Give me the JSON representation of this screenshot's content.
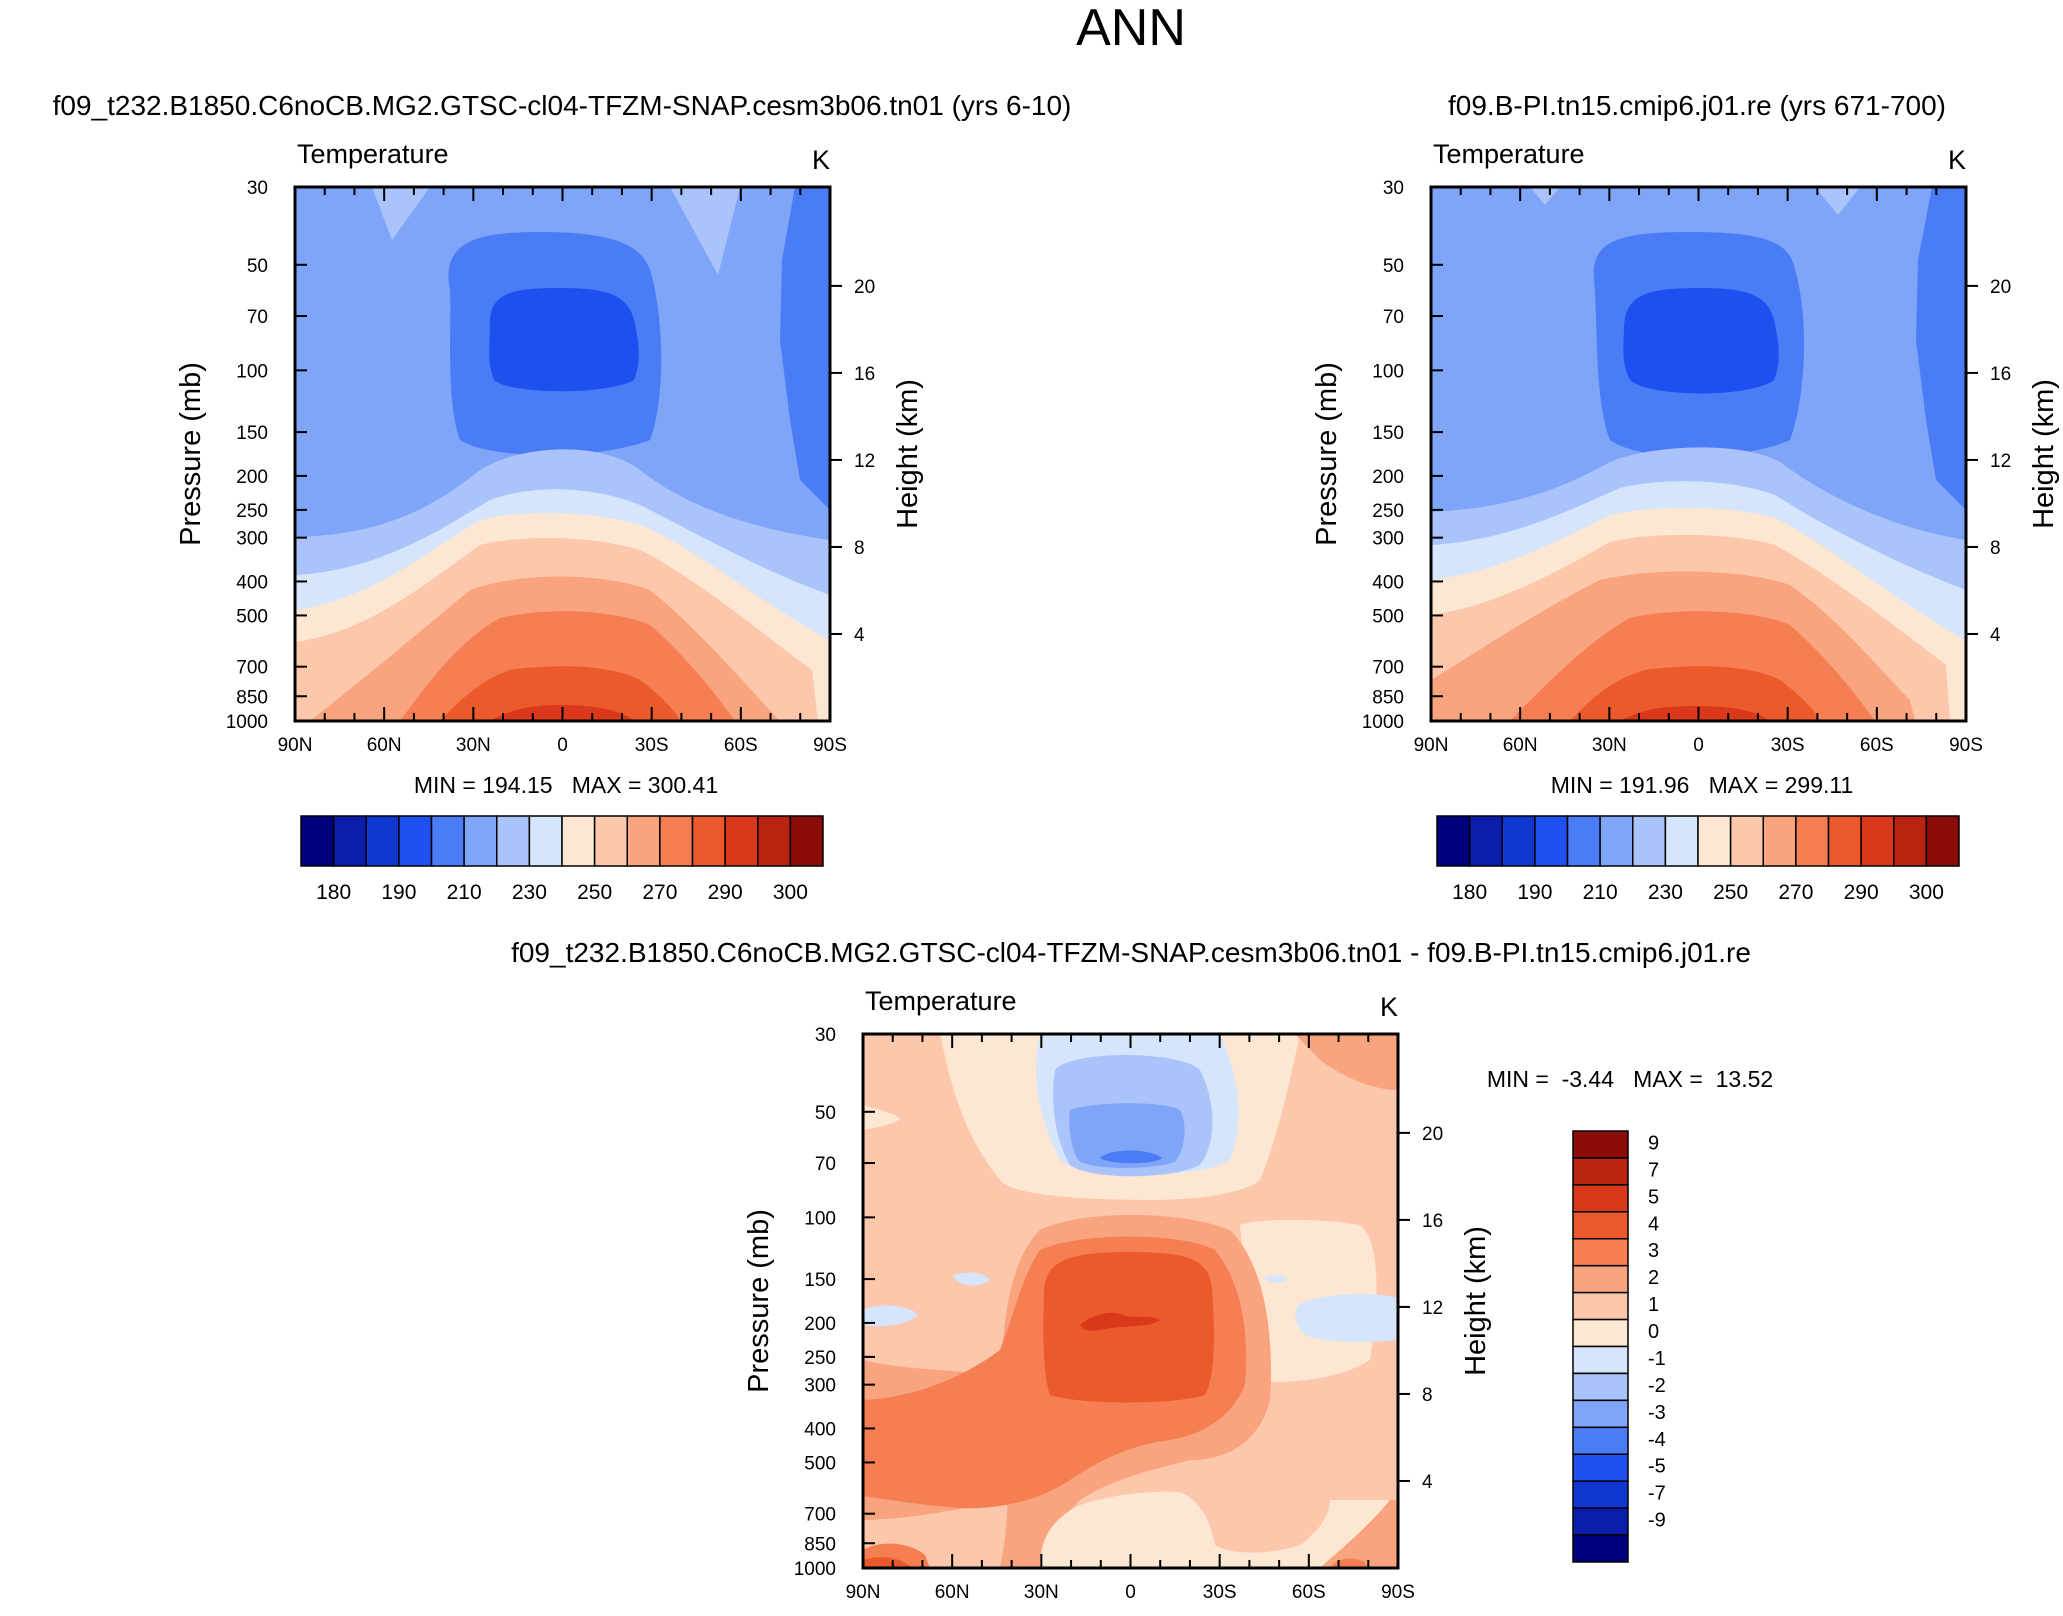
{
  "figure": {
    "title": "ANN"
  },
  "chart_data": [
    {
      "type": "heatmap",
      "case_title": "f09_t232.B1850.C6noCB.MG2.GTSC-cl04-TFZM-SNAP.cesm3b06.tn01 (yrs 6-10)",
      "variable": "Temperature",
      "units": "K",
      "ylabel": "Pressure (mb)",
      "ylabel_right": "Height (km)",
      "x_ticks": [
        "90N",
        "60N",
        "30N",
        "0",
        "30S",
        "60S",
        "90S"
      ],
      "x_range": [
        90,
        -90
      ],
      "y_ticks": [
        30,
        50,
        70,
        100,
        150,
        200,
        250,
        300,
        400,
        500,
        700,
        850,
        1000
      ],
      "y_range": [
        30,
        1000
      ],
      "y_scale": "log",
      "height_ticks_km": [
        20,
        16,
        12,
        8,
        4
      ],
      "stats": "MIN = 194.15   MAX = 300.41",
      "min": 194.15,
      "max": 300.41,
      "colorbar": {
        "orientation": "horizontal",
        "levels": [
          175,
          180,
          185,
          190,
          200,
          210,
          220,
          230,
          240,
          250,
          260,
          270,
          280,
          290,
          295,
          300
        ],
        "labels": [
          "180",
          "190",
          "210",
          "230",
          "250",
          "270",
          "290",
          "300"
        ],
        "colors": [
          "#00007f",
          "#0a1eab",
          "#0f37d2",
          "#1e50f0",
          "#4a7cf5",
          "#7fa5f9",
          "#aac4fb",
          "#d4e5fc",
          "#fde6d2",
          "#fcc7ab",
          "#f9a47f",
          "#f57f52",
          "#ec5a2b",
          "#d9391a",
          "#b8240f",
          "#8b0d0a"
        ]
      }
    },
    {
      "type": "heatmap",
      "case_title": "f09.B-PI.tn15.cmip6.j01.re (yrs 671-700)",
      "variable": "Temperature",
      "units": "K",
      "ylabel": "Pressure (mb)",
      "ylabel_right": "Height (km)",
      "x_ticks": [
        "90N",
        "60N",
        "30N",
        "0",
        "30S",
        "60S",
        "90S"
      ],
      "x_range": [
        90,
        -90
      ],
      "y_ticks": [
        30,
        50,
        70,
        100,
        150,
        200,
        250,
        300,
        400,
        500,
        700,
        850,
        1000
      ],
      "y_range": [
        30,
        1000
      ],
      "y_scale": "log",
      "height_ticks_km": [
        20,
        16,
        12,
        8,
        4
      ],
      "stats": "MIN = 191.96   MAX = 299.11",
      "min": 191.96,
      "max": 299.11,
      "colorbar": {
        "orientation": "horizontal",
        "levels": [
          175,
          180,
          185,
          190,
          200,
          210,
          220,
          230,
          240,
          250,
          260,
          270,
          280,
          290,
          295,
          300
        ],
        "labels": [
          "180",
          "190",
          "210",
          "230",
          "250",
          "270",
          "290",
          "300"
        ],
        "colors": [
          "#00007f",
          "#0a1eab",
          "#0f37d2",
          "#1e50f0",
          "#4a7cf5",
          "#7fa5f9",
          "#aac4fb",
          "#d4e5fc",
          "#fde6d2",
          "#fcc7ab",
          "#f9a47f",
          "#f57f52",
          "#ec5a2b",
          "#d9391a",
          "#b8240f",
          "#8b0d0a"
        ]
      }
    },
    {
      "type": "heatmap",
      "case_title": "f09_t232.B1850.C6noCB.MG2.GTSC-cl04-TFZM-SNAP.cesm3b06.tn01 - f09.B-PI.tn15.cmip6.j01.re",
      "variable": "Temperature",
      "units": "K",
      "ylabel": "Pressure (mb)",
      "ylabel_right": "Height (km)",
      "x_ticks": [
        "90N",
        "60N",
        "30N",
        "0",
        "30S",
        "60S",
        "90S"
      ],
      "x_range": [
        90,
        -90
      ],
      "y_ticks": [
        30,
        50,
        70,
        100,
        150,
        200,
        250,
        300,
        400,
        500,
        700,
        850,
        1000
      ],
      "y_range": [
        30,
        1000
      ],
      "y_scale": "log",
      "height_ticks_km": [
        20,
        16,
        12,
        8,
        4
      ],
      "stats": "MIN =  -3.44   MAX =  13.52",
      "min": -3.44,
      "max": 13.52,
      "colorbar": {
        "orientation": "vertical",
        "labels": [
          "9",
          "7",
          "5",
          "4",
          "3",
          "2",
          "1",
          "0",
          "-1",
          "-2",
          "-3",
          "-4",
          "-5",
          "-7",
          "-9"
        ],
        "colors": [
          "#8b0d0a",
          "#b8240f",
          "#d9391a",
          "#ec5a2b",
          "#f57f52",
          "#f9a47f",
          "#fcc7ab",
          "#fde6d2",
          "#d4e5fc",
          "#aac4fb",
          "#7fa5f9",
          "#4a7cf5",
          "#1e50f0",
          "#0f37d2",
          "#0a1eab",
          "#00007f"
        ]
      }
    }
  ]
}
